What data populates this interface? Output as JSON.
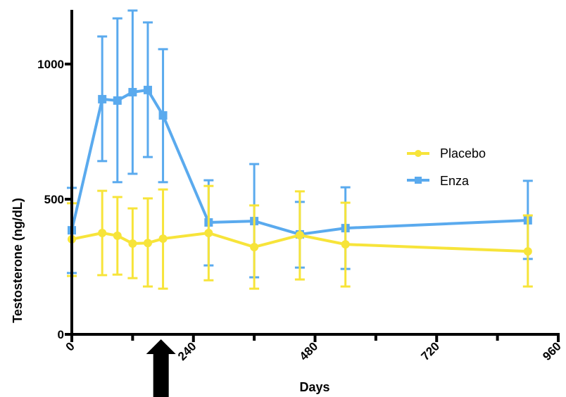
{
  "chart_data": {
    "type": "line",
    "title": "",
    "xlabel": "Days",
    "ylabel": "Testosterone (ng/dL)",
    "xlim": [
      0,
      960
    ],
    "ylim": [
      0,
      1200
    ],
    "x_ticks": [
      0,
      240,
      480,
      720,
      960
    ],
    "x_minor_ticks": [
      120,
      360,
      600,
      840
    ],
    "y_ticks": [
      0,
      500,
      1000
    ],
    "x_tick_labels": [
      "0",
      "240",
      "480",
      "720",
      "960"
    ],
    "y_tick_labels": [
      "0",
      "500",
      "1000"
    ],
    "grid": false,
    "legend_position": "right",
    "annotation": {
      "type": "arrow",
      "x": 176,
      "direction": "up",
      "description": "arrow below x-axis marking a time point"
    },
    "series": [
      {
        "name": "Placebo",
        "color": "#F7E43A",
        "marker": "circle",
        "x": [
          0,
          60,
          90,
          120,
          150,
          180,
          270,
          360,
          450,
          540,
          900
        ],
        "values": [
          352,
          375,
          365,
          336,
          338,
          354,
          375,
          323,
          367,
          333,
          307
        ],
        "error_upper": [
          485,
          531,
          508,
          466,
          503,
          536,
          549,
          477,
          529,
          487,
          440
        ],
        "error_lower": [
          216,
          219,
          221,
          208,
          177,
          169,
          200,
          169,
          203,
          177,
          177
        ]
      },
      {
        "name": "Enza",
        "color": "#5AAAEE",
        "marker": "square",
        "x": [
          0,
          60,
          90,
          120,
          150,
          180,
          270,
          360,
          450,
          540,
          900
        ],
        "values": [
          385,
          870,
          865,
          896,
          904,
          810,
          414,
          419,
          370,
          393,
          422
        ],
        "error_upper": [
          542,
          1102,
          1169,
          1198,
          1154,
          1055,
          570,
          630,
          490,
          544,
          568
        ],
        "error_lower": [
          227,
          641,
          563,
          594,
          656,
          563,
          255,
          211,
          247,
          242,
          279
        ]
      }
    ]
  }
}
